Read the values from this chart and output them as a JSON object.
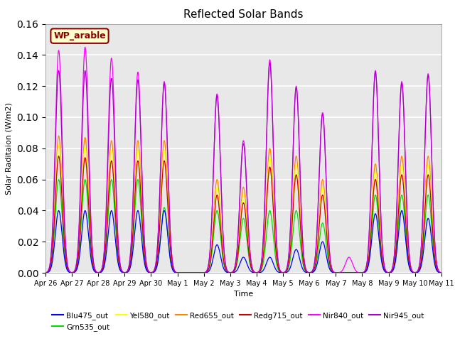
{
  "title": "Reflected Solar Bands",
  "xlabel": "Time",
  "ylabel": "Solar Raditaion (W/m2)",
  "annotation": "WP_arable",
  "ylim": [
    0,
    0.16
  ],
  "series": {
    "Blu475_out": {
      "color": "#0000ff"
    },
    "Grn535_out": {
      "color": "#00dd00"
    },
    "Yel580_out": {
      "color": "#ffff00"
    },
    "Red655_out": {
      "color": "#ff8800"
    },
    "Redg715_out": {
      "color": "#cc0000"
    },
    "Nir840_out": {
      "color": "#ff00ff"
    },
    "Nir945_out": {
      "color": "#aa00cc"
    }
  },
  "background_color": "#e8e8e8",
  "grid_color": "white",
  "tick_dates": [
    "Apr 26",
    "Apr 27",
    "Apr 28",
    "Apr 29",
    "Apr 30",
    "May 1",
    "May 2",
    "May 3",
    "May 4",
    "May 5",
    "May 6",
    "May 7",
    "May 8",
    "May 9",
    "May 10",
    "May 11"
  ]
}
